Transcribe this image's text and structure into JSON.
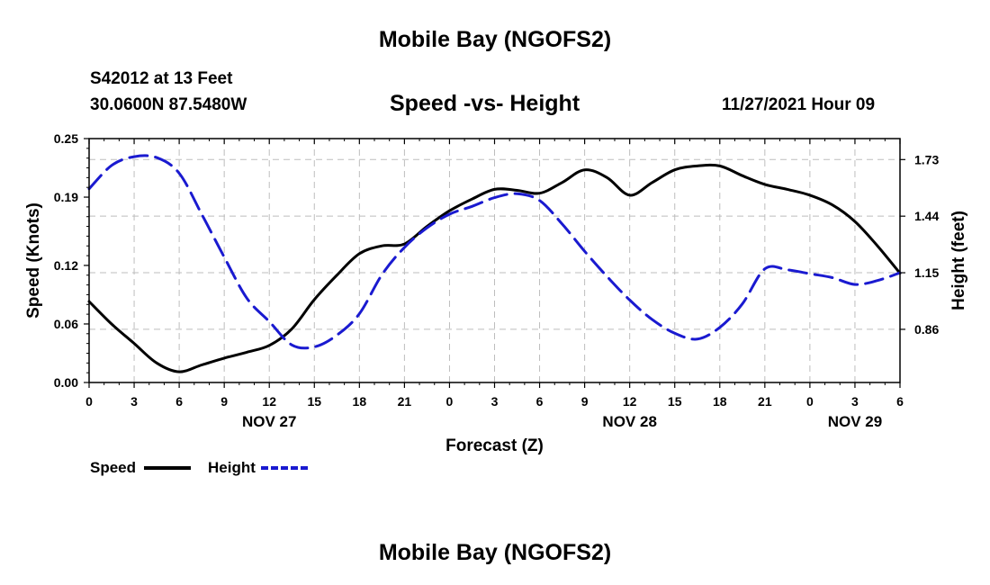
{
  "header": {
    "title": "Mobile Bay (NGOFS2)",
    "station": "S42012 at 13 Feet",
    "coords": "30.0600N  87.5480W",
    "subtitle": "Speed -vs- Height",
    "datetime": "11/27/2021 Hour 09"
  },
  "footer": {
    "title": "Mobile Bay (NGOFS2)"
  },
  "legend": {
    "speed_label": "Speed",
    "height_label": "Height"
  },
  "colors": {
    "speed": "#000000",
    "height": "#1a1ad0",
    "grid": "#bdbdbd"
  },
  "chart_data": {
    "type": "line",
    "title": "Speed -vs- Height",
    "xlabel": "Forecast (Z)",
    "ylabel": "Speed (Knots)",
    "y2label": "Height (feet)",
    "xlim": [
      0,
      54
    ],
    "x_ticks": [
      0,
      3,
      6,
      9,
      12,
      15,
      18,
      21,
      24,
      27,
      30,
      33,
      36,
      39,
      42,
      45,
      48,
      51,
      54
    ],
    "x_tick_labels": [
      "0",
      "3",
      "6",
      "9",
      "12",
      "15",
      "18",
      "21",
      "0",
      "3",
      "6",
      "9",
      "12",
      "15",
      "18",
      "21",
      "0",
      "3",
      "6"
    ],
    "date_labels": [
      {
        "x": 12,
        "label": "NOV 27"
      },
      {
        "x": 36,
        "label": "NOV 28"
      },
      {
        "x": 51,
        "label": "NOV 29"
      }
    ],
    "ylim": [
      0,
      0.25
    ],
    "y_ticks": [
      0,
      0.06,
      0.12,
      0.19,
      0.25
    ],
    "y_tick_labels": [
      "0.00",
      "0.06",
      "0.12",
      "0.19",
      "0.25"
    ],
    "y2lim": [
      0.5875,
      1.8375
    ],
    "y2_ticks": [
      0.86,
      1.15,
      1.44,
      1.73
    ],
    "y2_tick_labels": [
      "0.86",
      "1.15",
      "1.44",
      "1.73"
    ],
    "grid": true,
    "legend_position": "bottom-left",
    "series": [
      {
        "name": "Speed",
        "axis": "left",
        "style": "solid",
        "x": [
          0,
          1.5,
          3,
          4.5,
          6,
          7.5,
          9,
          10.5,
          12,
          13.5,
          15,
          16.5,
          18,
          19.5,
          21,
          22.5,
          24,
          25.5,
          27,
          28.5,
          30,
          31.5,
          33,
          34.5,
          36,
          37.5,
          39,
          40.5,
          42,
          43.5,
          45,
          46.5,
          48,
          49.5,
          51,
          52.5,
          54
        ],
        "values": [
          0.083,
          0.06,
          0.04,
          0.02,
          0.011,
          0.018,
          0.025,
          0.031,
          0.038,
          0.055,
          0.085,
          0.11,
          0.132,
          0.14,
          0.142,
          0.16,
          0.176,
          0.188,
          0.198,
          0.197,
          0.194,
          0.205,
          0.218,
          0.21,
          0.192,
          0.205,
          0.218,
          0.222,
          0.222,
          0.212,
          0.203,
          0.198,
          0.192,
          0.182,
          0.165,
          0.14,
          0.112
        ]
      },
      {
        "name": "Height",
        "axis": "right",
        "style": "dashed",
        "x": [
          0,
          1.5,
          3,
          4.5,
          6,
          7.5,
          9,
          10.5,
          12,
          13.5,
          15,
          16.5,
          18,
          19.5,
          21,
          22.5,
          24,
          25.5,
          27,
          28.5,
          30,
          31.5,
          33,
          34.5,
          36,
          37.5,
          39,
          40.5,
          42,
          43.5,
          45,
          46.5,
          48,
          49.5,
          51,
          52.5,
          54
        ],
        "values": [
          1.58,
          1.7,
          1.745,
          1.74,
          1.66,
          1.45,
          1.23,
          1.02,
          0.9,
          0.78,
          0.77,
          0.83,
          0.94,
          1.14,
          1.28,
          1.38,
          1.45,
          1.49,
          1.535,
          1.555,
          1.52,
          1.4,
          1.26,
          1.13,
          1.01,
          0.91,
          0.84,
          0.81,
          0.87,
          0.99,
          1.17,
          1.165,
          1.145,
          1.125,
          1.09,
          1.11,
          1.15
        ]
      }
    ]
  }
}
